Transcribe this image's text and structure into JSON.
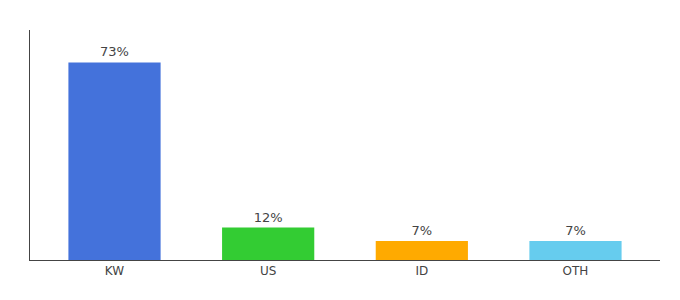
{
  "chart_data": {
    "type": "bar",
    "categories": [
      "KW",
      "US",
      "ID",
      "OTH"
    ],
    "values": [
      73,
      12,
      7,
      7
    ],
    "value_labels": [
      "73%",
      "12%",
      "7%",
      "7%"
    ],
    "colors": [
      "#4472db",
      "#33cc33",
      "#ffaa00",
      "#66ccee"
    ],
    "ylim": [
      0,
      85
    ],
    "data_labels": true,
    "tick_labels": "x",
    "grid": false
  }
}
